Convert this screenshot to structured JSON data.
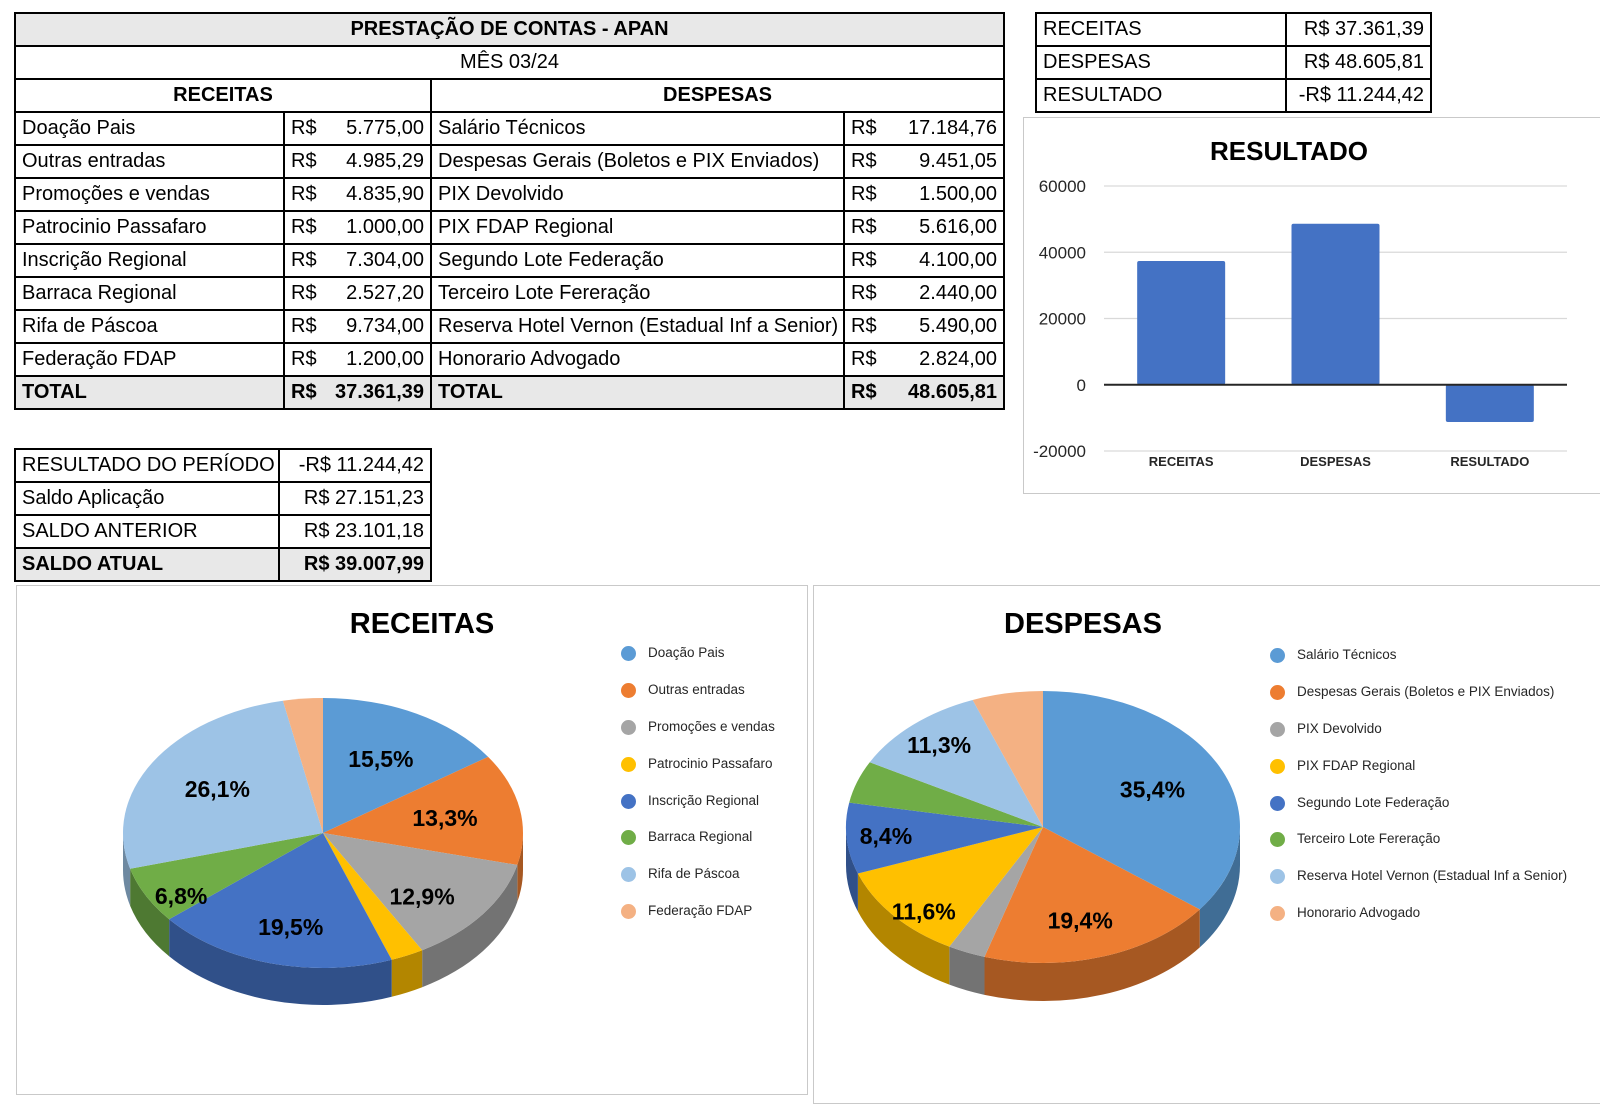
{
  "main_table": {
    "title": "PRESTAÇÃO DE CONTAS - APAN",
    "subtitle": "MÊS 03/24",
    "currency": "R$",
    "receitas_header": "RECEITAS",
    "despesas_header": "DESPESAS",
    "total_label": "TOTAL",
    "receitas": [
      {
        "label": "Doação Pais",
        "amount": "5.775,00"
      },
      {
        "label": "Outras entradas",
        "amount": "4.985,29"
      },
      {
        "label": "Promoções e vendas",
        "amount": "4.835,90"
      },
      {
        "label": "Patrocinio Passafaro",
        "amount": "1.000,00"
      },
      {
        "label": "Inscrição Regional",
        "amount": "7.304,00"
      },
      {
        "label": "Barraca Regional",
        "amount": "2.527,20"
      },
      {
        "label": "Rifa de Páscoa",
        "amount": "9.734,00"
      },
      {
        "label": "Federação FDAP",
        "amount": "1.200,00"
      }
    ],
    "despesas": [
      {
        "label": "Salário Técnicos",
        "amount": "17.184,76"
      },
      {
        "label": "Despesas Gerais (Boletos e PIX Enviados)",
        "amount": "9.451,05"
      },
      {
        "label": "PIX Devolvido",
        "amount": "1.500,00"
      },
      {
        "label": "PIX FDAP Regional",
        "amount": "5.616,00"
      },
      {
        "label": "Segundo Lote Federação",
        "amount": "4.100,00"
      },
      {
        "label": "Terceiro Lote Fereração",
        "amount": "2.440,00"
      },
      {
        "label": "Reserva Hotel Vernon (Estadual Inf a Senior)",
        "amount": "5.490,00"
      },
      {
        "label": "Honorario Advogado",
        "amount": "2.824,00"
      }
    ],
    "receitas_total": "37.361,39",
    "despesas_total": "48.605,81"
  },
  "summary_table": {
    "rows": [
      {
        "label": "RECEITAS",
        "value": "R$ 37.361,39"
      },
      {
        "label": "DESPESAS",
        "value": "R$ 48.605,81"
      },
      {
        "label": "RESULTADO",
        "value": "-R$ 11.244,42"
      }
    ]
  },
  "balance_table": {
    "rows": [
      {
        "label": "RESULTADO DO PERÍODO",
        "value": "-R$ 11.244,42",
        "emphasis": false
      },
      {
        "label": "Saldo Aplicação",
        "value": "R$ 27.151,23",
        "emphasis": false
      },
      {
        "label": "SALDO ANTERIOR",
        "value": "R$ 23.101,18",
        "emphasis": false
      },
      {
        "label": "SALDO ATUAL",
        "value": "R$ 39.007,99",
        "emphasis": true
      }
    ]
  },
  "chart_data": [
    {
      "type": "bar",
      "title": "RESULTADO",
      "categories": [
        "RECEITAS",
        "DESPESAS",
        "RESULTADO"
      ],
      "values": [
        37361.39,
        48605.81,
        -11244.42
      ],
      "ylim": [
        -20000,
        60000
      ],
      "yticks": [
        60000,
        40000,
        20000,
        0,
        -20000
      ],
      "bar_color": "#4472C4",
      "grid": true,
      "gridline_color": "#D9D9D9",
      "axis_color": "#262626",
      "legend_position": "none"
    },
    {
      "type": "pie",
      "title": "RECEITAS",
      "three_d": true,
      "legend_position": "right",
      "slices": [
        {
          "name": "Doação Pais",
          "value": 5775.0,
          "pct_label": "15,5%",
          "color": "#5B9BD5"
        },
        {
          "name": "Outras entradas",
          "value": 4985.29,
          "pct_label": "13,3%",
          "color": "#ED7D31"
        },
        {
          "name": "Promoções e vendas",
          "value": 4835.9,
          "pct_label": "12,9%",
          "color": "#A5A5A5"
        },
        {
          "name": "Patrocinio Passafaro",
          "value": 1000.0,
          "pct_label": null,
          "color": "#FFC000"
        },
        {
          "name": "Inscrição Regional",
          "value": 7304.0,
          "pct_label": "19,5%",
          "color": "#4472C4"
        },
        {
          "name": "Barraca Regional",
          "value": 2527.2,
          "pct_label": "6,8%",
          "color": "#70AD47"
        },
        {
          "name": "Rifa de Páscoa",
          "value": 9734.0,
          "pct_label": "26,1%",
          "color": "#9DC3E6"
        },
        {
          "name": "Federação FDAP",
          "value": 1200.0,
          "pct_label": null,
          "color": "#F4B183"
        }
      ]
    },
    {
      "type": "pie",
      "title": "DESPESAS",
      "three_d": true,
      "legend_position": "right",
      "slices": [
        {
          "name": "Salário Técnicos",
          "value": 17184.76,
          "pct_label": "35,4%",
          "color": "#5B9BD5"
        },
        {
          "name": "Despesas Gerais (Boletos e PIX Enviados)",
          "value": 9451.05,
          "pct_label": "19,4%",
          "color": "#ED7D31"
        },
        {
          "name": "PIX Devolvido",
          "value": 1500.0,
          "pct_label": null,
          "color": "#A5A5A5"
        },
        {
          "name": "PIX FDAP Regional",
          "value": 5616.0,
          "pct_label": "11,6%",
          "color": "#FFC000"
        },
        {
          "name": "Segundo Lote Federação",
          "value": 4100.0,
          "pct_label": "8,4%",
          "color": "#4472C4"
        },
        {
          "name": "Terceiro Lote Fereração",
          "value": 2440.0,
          "pct_label": null,
          "color": "#70AD47"
        },
        {
          "name": "Reserva Hotel Vernon (Estadual Inf a Senior)",
          "value": 5490.0,
          "pct_label": "11,3%",
          "color": "#9DC3E6"
        },
        {
          "name": "Honorario Advogado",
          "value": 2824.0,
          "pct_label": null,
          "color": "#F4B183"
        }
      ]
    }
  ]
}
